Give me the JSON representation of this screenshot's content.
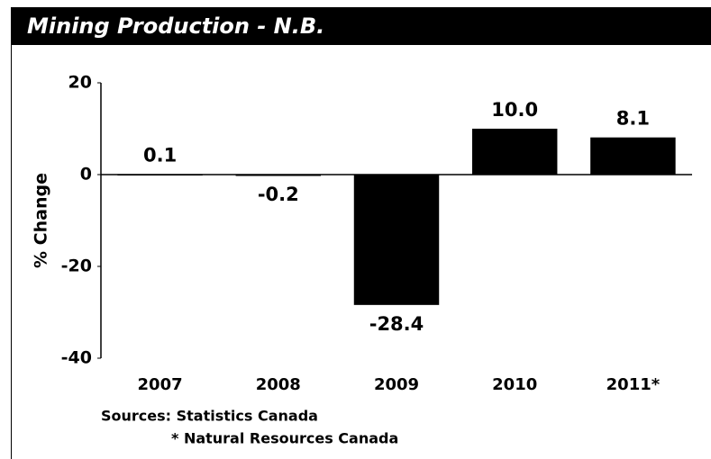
{
  "chart_data": {
    "type": "bar",
    "title": "Mining Production - N.B.",
    "ylabel": "% Change",
    "categories": [
      "2007",
      "2008",
      "2009",
      "2010",
      "2011*"
    ],
    "values": [
      0.1,
      -0.2,
      -28.4,
      10.0,
      8.1
    ],
    "value_labels": [
      "0.1",
      "-0.2",
      "-28.4",
      "10.0",
      "8.1"
    ],
    "color": "#000000",
    "ylim": [
      -40,
      20
    ],
    "yticks": [
      20,
      0,
      -20,
      -40
    ],
    "grid": false,
    "sources": [
      "Sources: Statistics Canada",
      "* Natural Resources Canada"
    ]
  }
}
